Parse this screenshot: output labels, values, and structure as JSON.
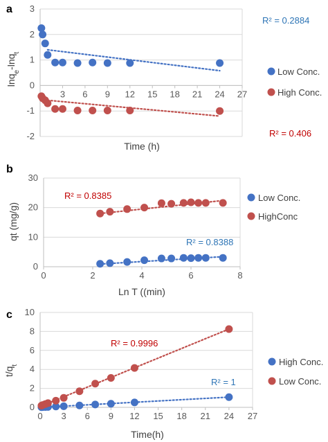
{
  "colors": {
    "blue": "#4472C4",
    "red": "#C0504D",
    "annot_blue": "#2E75B6",
    "annot_red": "#C00000",
    "grid": "#D9D9D9",
    "axis": "#BFBFBF"
  },
  "chart_data": [
    {
      "panel": "a",
      "type": "scatter",
      "xlabel": "Time (h)",
      "ylabel": "lnqe-lnqt",
      "ylabel_main": "lnq",
      "ylabel_sub1": "e",
      "ylabel_mid": "-lnq",
      "ylabel_sub2": "t",
      "xlim": [
        0,
        27
      ],
      "ylim": [
        -2,
        3
      ],
      "xticks": [
        3,
        6,
        9,
        12,
        15,
        18,
        21,
        24,
        27
      ],
      "yticks": [
        -2,
        -1,
        0,
        1,
        2,
        3
      ],
      "grid": "horizontal",
      "legend_position": "right",
      "series": [
        {
          "name": "Low Conc.",
          "color": "#4472C4",
          "points": [
            [
              0.17,
              2.25
            ],
            [
              0.33,
              2.0
            ],
            [
              0.67,
              1.65
            ],
            [
              1,
              1.2
            ],
            [
              2,
              0.9
            ],
            [
              3,
              0.9
            ],
            [
              5,
              0.88
            ],
            [
              7,
              0.9
            ],
            [
              9,
              0.88
            ],
            [
              12,
              0.88
            ],
            [
              24,
              0.88
            ]
          ],
          "trend": [
            [
              1,
              1.4
            ],
            [
              24,
              0.58
            ]
          ]
        },
        {
          "name": "High Conc.",
          "color": "#C0504D",
          "points": [
            [
              0.17,
              -0.42
            ],
            [
              0.33,
              -0.5
            ],
            [
              0.67,
              -0.58
            ],
            [
              1,
              -0.7
            ],
            [
              2,
              -0.92
            ],
            [
              3,
              -0.92
            ],
            [
              5,
              -0.98
            ],
            [
              7,
              -0.98
            ],
            [
              9,
              -0.98
            ],
            [
              12,
              -0.98
            ],
            [
              24,
              -1.0
            ]
          ],
          "trend": [
            [
              1,
              -0.58
            ],
            [
              24,
              -1.2
            ]
          ]
        }
      ],
      "annotations": [
        {
          "text": "R² = 0.2884",
          "color": "#2E75B6"
        },
        {
          "text": "R² = 0.406",
          "color": "#C00000"
        }
      ]
    },
    {
      "panel": "b",
      "type": "scatter",
      "xlabel": "Ln T ((min)",
      "ylabel": "qt (mg/g)",
      "xlim": [
        0,
        8
      ],
      "ylim": [
        0,
        30
      ],
      "xticks": [
        0,
        2,
        4,
        6,
        8
      ],
      "yticks": [
        0,
        10,
        20,
        30
      ],
      "grid": "horizontal",
      "legend_position": "right",
      "series": [
        {
          "name": "Low Conc.",
          "color": "#4472C4",
          "points": [
            [
              2.3,
              1.0
            ],
            [
              2.7,
              1.2
            ],
            [
              3.4,
              1.6
            ],
            [
              4.1,
              2.2
            ],
            [
              4.8,
              2.8
            ],
            [
              5.2,
              2.8
            ],
            [
              5.7,
              3.0
            ],
            [
              6.0,
              2.9
            ],
            [
              6.3,
              3.0
            ],
            [
              6.6,
              3.0
            ],
            [
              7.3,
              3.0
            ]
          ],
          "trend": [
            [
              2.3,
              0.9
            ],
            [
              7.3,
              3.4
            ]
          ]
        },
        {
          "name": "HighConc",
          "color": "#C0504D",
          "points": [
            [
              2.3,
              18.0
            ],
            [
              2.7,
              18.6
            ],
            [
              3.4,
              19.5
            ],
            [
              4.1,
              20.0
            ],
            [
              4.8,
              21.5
            ],
            [
              5.2,
              21.3
            ],
            [
              5.7,
              21.6
            ],
            [
              6.0,
              21.8
            ],
            [
              6.3,
              21.6
            ],
            [
              6.6,
              21.6
            ],
            [
              7.3,
              21.6
            ]
          ],
          "trend": [
            [
              2.3,
              18.0
            ],
            [
              7.3,
              22.4
            ]
          ]
        }
      ],
      "annotations": [
        {
          "text": "R² = 0.8385",
          "color": "#C00000"
        },
        {
          "text": "R² = 0.8388",
          "color": "#2E75B6"
        }
      ]
    },
    {
      "panel": "c",
      "type": "scatter",
      "xlabel": "Time(h)",
      "ylabel": "t/qt",
      "ylabel_main": "t/q",
      "ylabel_sub": "t",
      "xlim": [
        0,
        27
      ],
      "ylim": [
        0,
        10
      ],
      "xticks": [
        0,
        3,
        6,
        9,
        12,
        15,
        18,
        21,
        24,
        27
      ],
      "yticks": [
        0,
        2,
        4,
        6,
        8,
        10
      ],
      "grid": "horizontal",
      "legend_position": "right",
      "series": [
        {
          "name": "High Conc.",
          "color": "#4472C4",
          "points": [
            [
              0.17,
              0.02
            ],
            [
              0.33,
              0.03
            ],
            [
              0.67,
              0.04
            ],
            [
              1,
              0.05
            ],
            [
              2,
              0.09
            ],
            [
              3,
              0.12
            ],
            [
              5,
              0.2
            ],
            [
              7,
              0.3
            ],
            [
              9,
              0.38
            ],
            [
              12,
              0.52
            ],
            [
              24,
              1.08
            ]
          ],
          "trend": [
            [
              0.17,
              0.0
            ],
            [
              24,
              1.08
            ]
          ]
        },
        {
          "name": "Low Conc.",
          "color": "#C0504D",
          "points": [
            [
              0.17,
              0.18
            ],
            [
              0.33,
              0.25
            ],
            [
              0.67,
              0.35
            ],
            [
              1,
              0.45
            ],
            [
              2,
              0.7
            ],
            [
              3,
              1.0
            ],
            [
              5,
              1.7
            ],
            [
              7,
              2.5
            ],
            [
              9,
              3.1
            ],
            [
              12,
              4.15
            ],
            [
              24,
              8.25
            ]
          ],
          "trend": [
            [
              0.17,
              0.15
            ],
            [
              24,
              8.25
            ]
          ]
        }
      ],
      "annotations": [
        {
          "text": "R² = 0.9996",
          "color": "#C00000"
        },
        {
          "text": "R² = 1",
          "color": "#2E75B6"
        }
      ]
    }
  ]
}
